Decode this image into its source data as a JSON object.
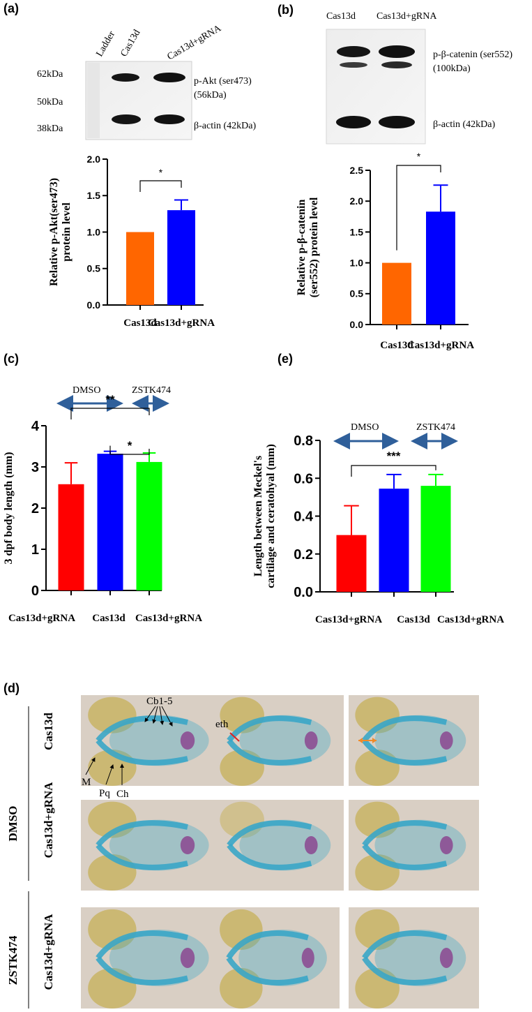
{
  "panels": {
    "a": {
      "letter": "(a)",
      "blot": {
        "lane_labels": [
          "Ladder",
          "Cas13d",
          "Cas13d+gRNA"
        ],
        "markers": [
          "62kDa",
          "50kDa",
          "38kDa"
        ],
        "band_labels": [
          "p-Akt (ser473)",
          "(56kDa)",
          "β-actin (42kDa)"
        ]
      }
    },
    "b": {
      "letter": "(b)",
      "blot": {
        "lane_labels": [
          "Cas13d",
          "Cas13d+gRNA"
        ],
        "band_labels": [
          "p-β-catenin (ser552)",
          "(100kDa)",
          "β-actin (42kDa)"
        ]
      }
    },
    "c": {
      "letter": "(c)",
      "treatments": [
        "DMSO",
        "ZSTK474"
      ]
    },
    "e": {
      "letter": "(e)",
      "treatments": [
        "DMSO",
        "ZSTK474"
      ]
    },
    "d": {
      "letter": "(d)",
      "group_labels": [
        "DMSO",
        "ZSTK474"
      ],
      "row_labels": [
        "Cas13d",
        "Cas13d+gRNA",
        "Cas13d+gRNA"
      ],
      "annotations": [
        "Cb1-5",
        "eth",
        "M",
        "Pq",
        "Ch"
      ],
      "colors": {
        "cartilage": "#3aa6c8",
        "yolk_eye": "#c9b56a",
        "tissue": "#d9cfc4",
        "purple": "#8a3e8c",
        "red_arrow": "#e02020",
        "orange_arrow": "#f08a28"
      }
    }
  },
  "chart_data": [
    {
      "id": "a",
      "type": "bar",
      "categories": [
        "Cas13d",
        "Cas13d+gRNA"
      ],
      "values": [
        1.0,
        1.3
      ],
      "errors": [
        0,
        0.14
      ],
      "colors": [
        "#ff6600",
        "#0000ff"
      ],
      "ylabel": "Relative p-Akt(ser473) protein level",
      "ylim": [
        0,
        2.0
      ],
      "yticks": [
        "0.0",
        "0.5",
        "1.0",
        "1.5",
        "2.0"
      ],
      "significance": [
        {
          "between": [
            0,
            1
          ],
          "label": "*"
        }
      ]
    },
    {
      "id": "b",
      "type": "bar",
      "categories": [
        "Cas13d",
        "Cas13d+gRNA"
      ],
      "values": [
        1.0,
        1.83
      ],
      "errors": [
        0,
        0.43
      ],
      "colors": [
        "#ff6600",
        "#0000ff"
      ],
      "ylabel": "Relative p-β-catenin (ser552) protein level",
      "ylim": [
        0,
        2.5
      ],
      "yticks": [
        "0.0",
        "0.5",
        "1.0",
        "1.5",
        "2.0",
        "2.5"
      ],
      "significance": [
        {
          "between": [
            0,
            1
          ],
          "label": "*"
        }
      ]
    },
    {
      "id": "c",
      "type": "bar",
      "categories": [
        "Cas13d+gRNA",
        "Cas13d",
        "Cas13d+gRNA"
      ],
      "values": [
        2.58,
        3.32,
        3.12
      ],
      "errors": [
        0.52,
        0.06,
        0.22
      ],
      "colors": [
        "#ff0000",
        "#0000ff",
        "#00ff00"
      ],
      "ylabel": "3 dpf body length (mm)",
      "ylim": [
        0,
        4
      ],
      "yticks": [
        "0",
        "1",
        "2",
        "3",
        "4"
      ],
      "significance": [
        {
          "between": [
            0,
            2
          ],
          "label": "**"
        },
        {
          "between": [
            1,
            2
          ],
          "label": "*"
        }
      ]
    },
    {
      "id": "e",
      "type": "bar",
      "categories": [
        "Cas13d+gRNA",
        "Cas13d",
        "Cas13d+gRNA"
      ],
      "values": [
        0.3,
        0.545,
        0.56
      ],
      "errors": [
        0.155,
        0.075,
        0.06
      ],
      "colors": [
        "#ff0000",
        "#0000ff",
        "#00ff00"
      ],
      "ylabel": "Length between Meckel's cartilage and ceratohyal (mm)",
      "ylim": [
        0,
        0.8
      ],
      "yticks": [
        "0.0",
        "0.2",
        "0.4",
        "0.6",
        "0.8"
      ],
      "significance": [
        {
          "between": [
            0,
            2
          ],
          "label": "***"
        }
      ]
    }
  ]
}
